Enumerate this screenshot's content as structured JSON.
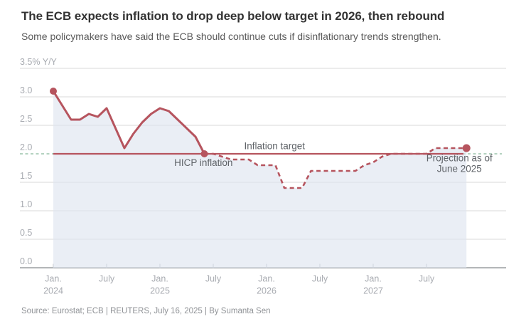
{
  "header": {
    "title": "The ECB expects inflation to drop deep below target in 2026, then rebound",
    "subtitle": "Some policymakers have said the ECB should continue cuts if disinflationary trends strengthen."
  },
  "footer": {
    "source": "Source: Eurostat; ECB | REUTERS, July 16, 2025 | By Sumanta Sen"
  },
  "colors": {
    "line_red": "#b6545e",
    "target_green": "#9cc4ab",
    "area_fill": "#dde4ef",
    "gridline": "#dadada",
    "axis": "#9a9da1",
    "tick_mark": "#b9bcc0",
    "tick_label": "#a8abb1",
    "annotation": "#5f6368"
  },
  "chart_data": {
    "type": "line",
    "title": "The ECB expects inflation to drop deep below target in 2026, then rebound",
    "unit": "% Y/Y",
    "target_value": 2.0,
    "y_axis": {
      "min": 0,
      "max": 3.5,
      "grid": true,
      "ticks": [
        {
          "v": 3.5,
          "label": "3.5% Y/Y"
        },
        {
          "v": 3.0,
          "label": "3.0"
        },
        {
          "v": 2.5,
          "label": "2.5"
        },
        {
          "v": 2.0,
          "label": "2.0"
        },
        {
          "v": 1.5,
          "label": "1.5"
        },
        {
          "v": 1.0,
          "label": "1.0"
        },
        {
          "v": 0.5,
          "label": "0.5"
        },
        {
          "v": 0.0,
          "label": "0.0"
        }
      ]
    },
    "x_axis": {
      "ticks": [
        {
          "m": 0,
          "lines": [
            "Jan.",
            "2024"
          ]
        },
        {
          "m": 6,
          "lines": [
            "July"
          ]
        },
        {
          "m": 12,
          "lines": [
            "Jan.",
            "2025"
          ]
        },
        {
          "m": 18,
          "lines": [
            "July"
          ]
        },
        {
          "m": 24,
          "lines": [
            "Jan.",
            "2026"
          ]
        },
        {
          "m": 30,
          "lines": [
            "July"
          ]
        },
        {
          "m": 36,
          "lines": [
            "Jan.",
            "2027"
          ]
        },
        {
          "m": 42,
          "lines": [
            "July"
          ]
        }
      ]
    },
    "series": [
      {
        "name": "HICP inflation",
        "style": "solid",
        "months": [
          "2024-01",
          "2024-02",
          "2024-03",
          "2024-04",
          "2024-05",
          "2024-06",
          "2024-07",
          "2024-08",
          "2024-09",
          "2024-10",
          "2024-11",
          "2024-12",
          "2025-01",
          "2025-02",
          "2025-03",
          "2025-04",
          "2025-05",
          "2025-06"
        ],
        "values": [
          3.1,
          2.85,
          2.6,
          2.6,
          2.7,
          2.65,
          2.8,
          2.45,
          2.1,
          2.35,
          2.55,
          2.7,
          2.8,
          2.75,
          2.6,
          2.45,
          2.3,
          2.0
        ]
      },
      {
        "name": "Projection as of June 2025",
        "style": "dashed",
        "points": [
          {
            "m": 17,
            "v": 2.0,
            "t": "2025-06"
          },
          {
            "m": 18,
            "v": 2.0,
            "t": "2025-07"
          },
          {
            "m": 20,
            "v": 1.9,
            "t": "2025-09"
          },
          {
            "m": 22,
            "v": 1.9,
            "t": "2025-11"
          },
          {
            "m": 23,
            "v": 1.8,
            "t": "2025-12"
          },
          {
            "m": 25,
            "v": 1.8,
            "t": "2026-02"
          },
          {
            "m": 26,
            "v": 1.4,
            "t": "2026-03"
          },
          {
            "m": 28,
            "v": 1.4,
            "t": "2026-05"
          },
          {
            "m": 29,
            "v": 1.7,
            "t": "2026-06"
          },
          {
            "m": 34,
            "v": 1.7,
            "t": "2026-11"
          },
          {
            "m": 35,
            "v": 1.8,
            "t": "2026-12"
          },
          {
            "m": 36,
            "v": 1.85,
            "t": "2027-01"
          },
          {
            "m": 37,
            "v": 1.95,
            "t": "2027-02"
          },
          {
            "m": 38,
            "v": 2.0,
            "t": "2027-03"
          },
          {
            "m": 42,
            "v": 2.0,
            "t": "2027-07"
          },
          {
            "m": 43,
            "v": 2.1,
            "t": "2027-08"
          },
          {
            "m": 46.5,
            "v": 2.1,
            "t": "2027-11"
          }
        ]
      }
    ],
    "annotations": [
      {
        "id": "inflation-target",
        "m": 24.9,
        "v": 2.08,
        "lines": [
          "Inflation target"
        ]
      },
      {
        "id": "hicp-inflation",
        "m": 16.9,
        "v": 1.79,
        "lines": [
          "HICP inflation"
        ]
      },
      {
        "id": "projection",
        "m": 45.7,
        "v": 1.87,
        "lines": [
          "Projection as of",
          "June 2025"
        ]
      }
    ]
  }
}
